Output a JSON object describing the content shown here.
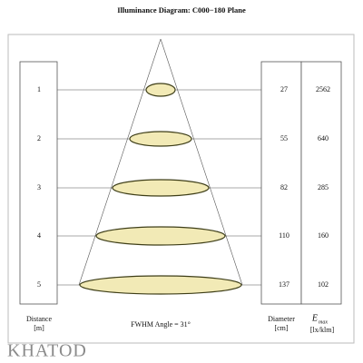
{
  "title": "Illuminance Diagram: C000−180 Plane",
  "rows": [
    {
      "distance": "1",
      "diameter": "27",
      "emax": "2562"
    },
    {
      "distance": "2",
      "diameter": "55",
      "emax": "640"
    },
    {
      "distance": "3",
      "diameter": "82",
      "emax": "285"
    },
    {
      "distance": "4",
      "diameter": "110",
      "emax": "160"
    },
    {
      "distance": "5",
      "diameter": "137",
      "emax": "102"
    }
  ],
  "labels": {
    "distance": "Distance",
    "distance_unit": "[m]",
    "fwhm": "FWHM Angle = 31°",
    "diameter": "Diameter",
    "diameter_unit": "[cm]",
    "emax": "E",
    "emax_sub": "max",
    "emax_unit": "[lx/klm]"
  },
  "logo": "KHATOD"
}
